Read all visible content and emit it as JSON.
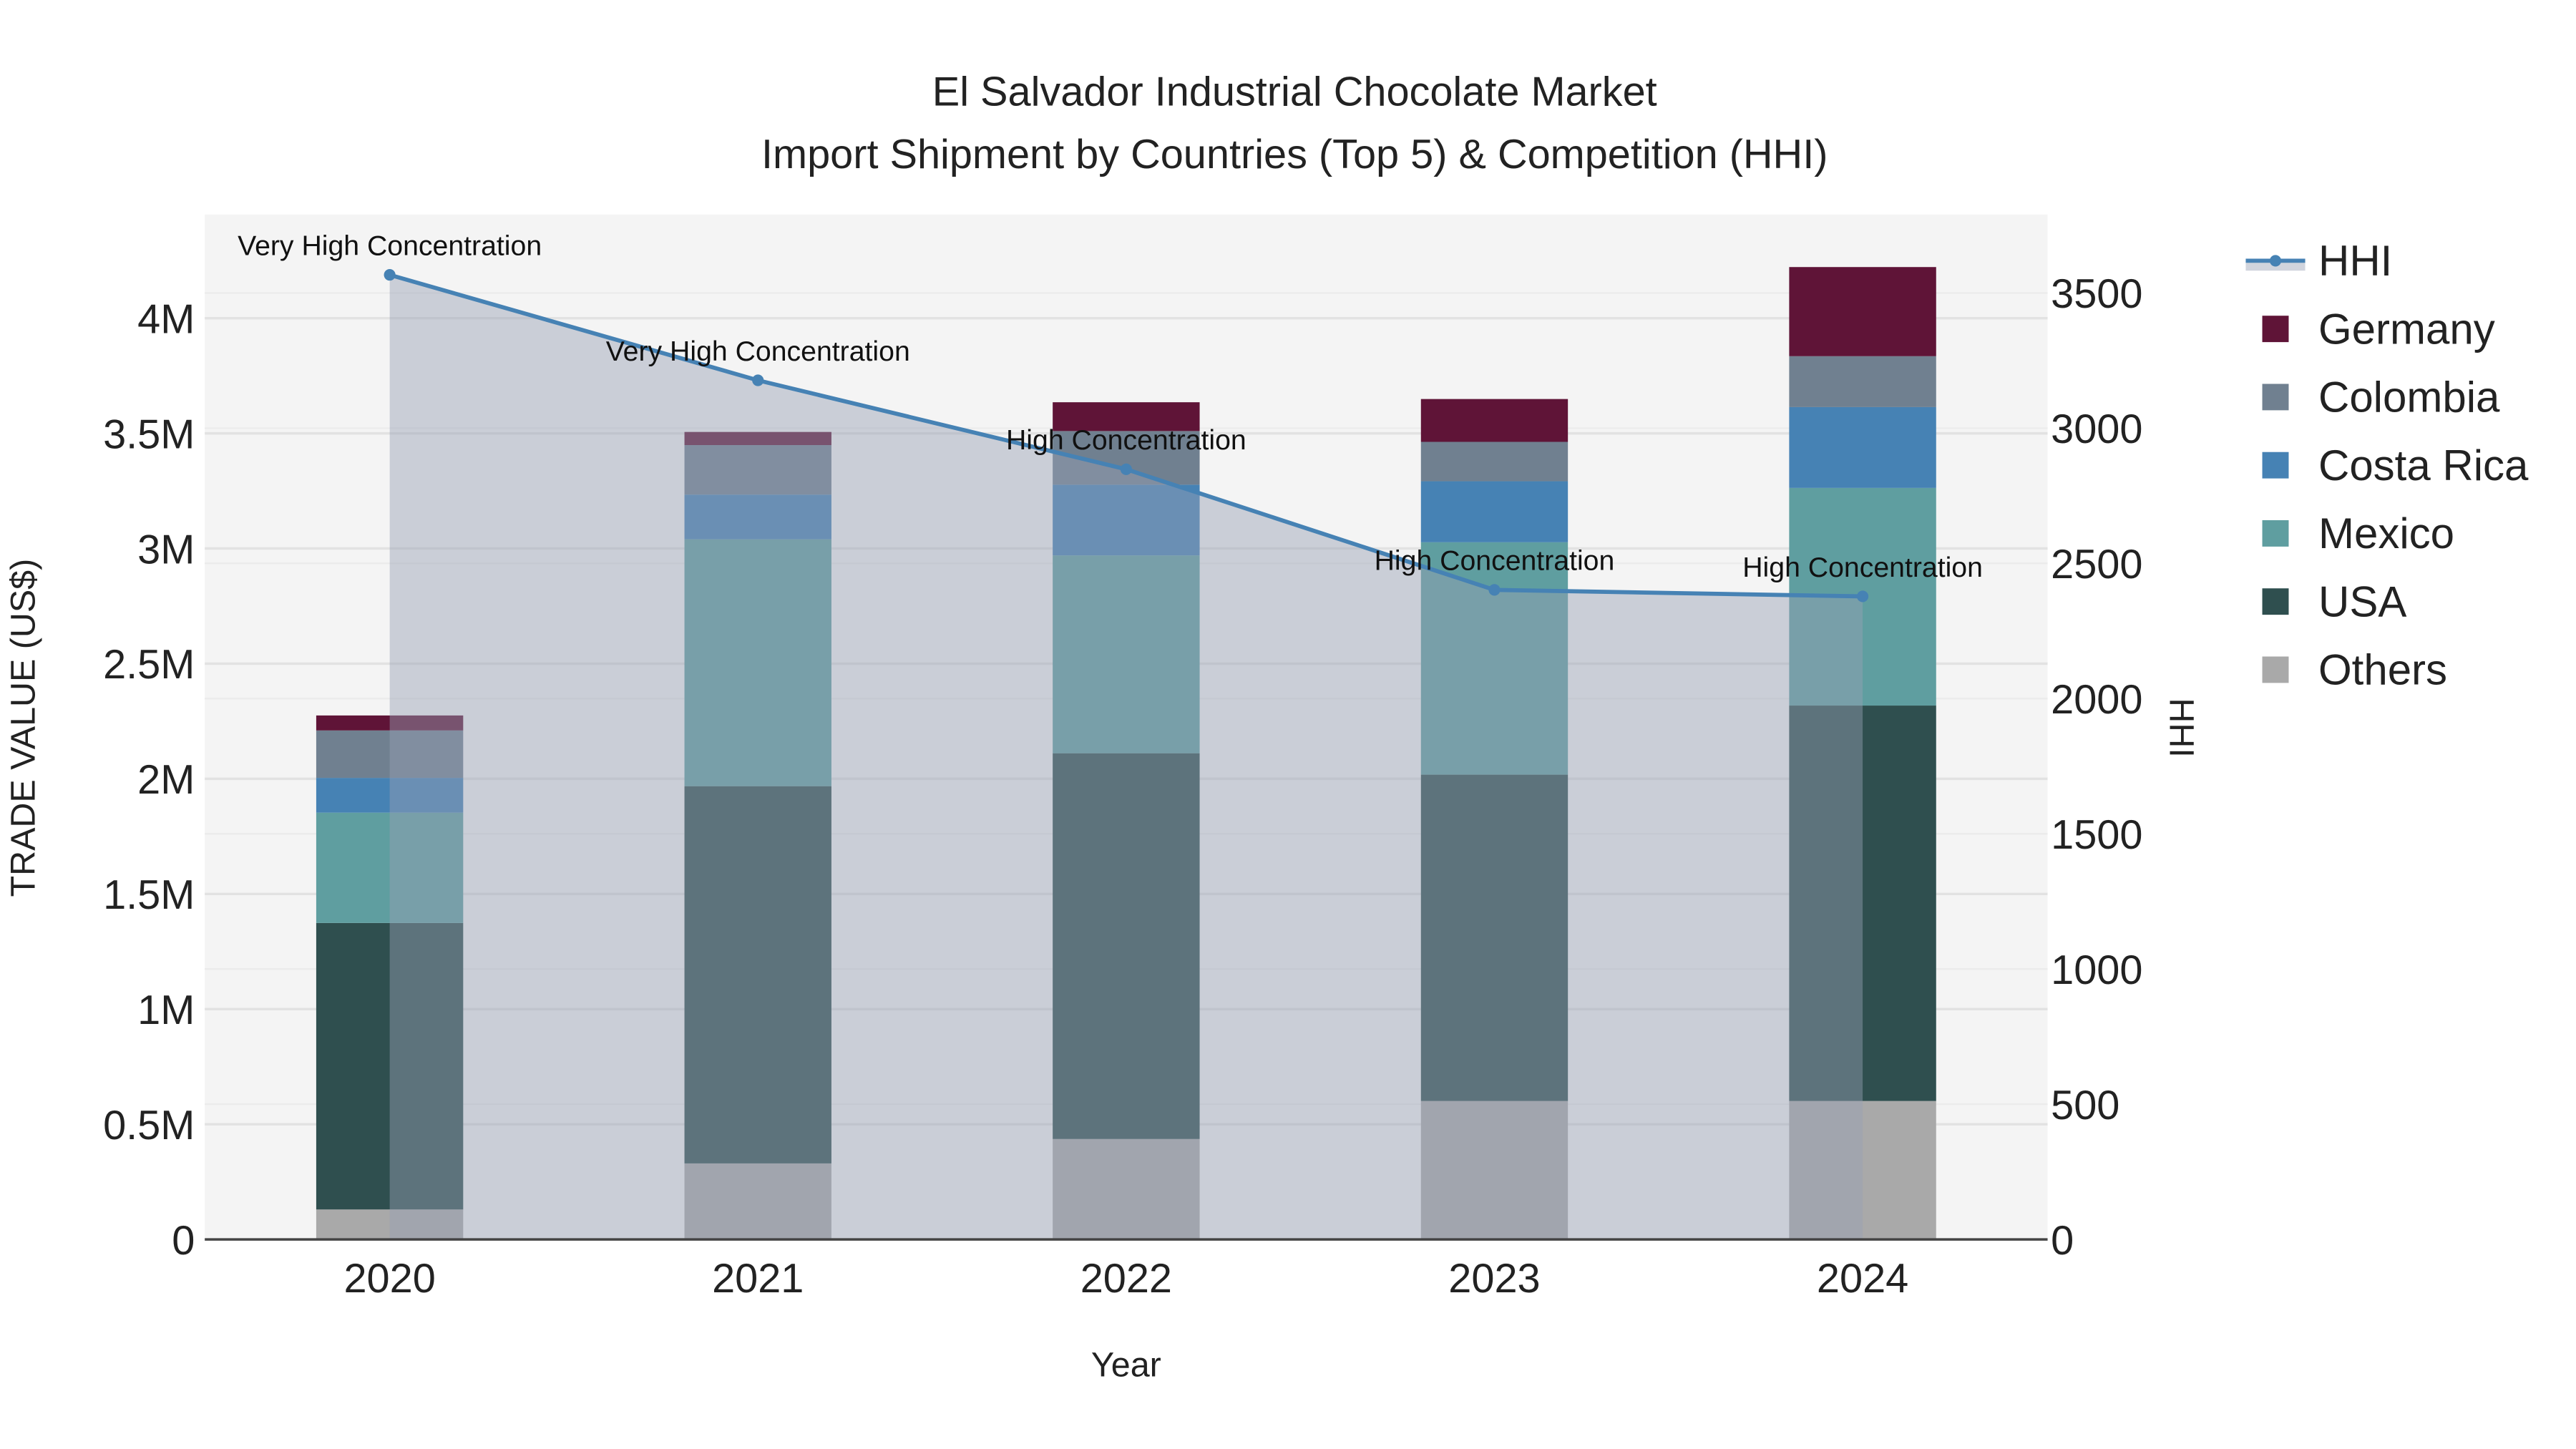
{
  "chart_data": {
    "type": "bar",
    "title": "El Salvador Industrial Chocolate Market",
    "subtitle": "Import Shipment by Countries (Top 5) & Competition (HHI)",
    "xlabel": "Year",
    "ylabel": "TRADE VALUE (US$)",
    "y2label": "HHI",
    "categories": [
      "2020",
      "2021",
      "2022",
      "2023",
      "2024"
    ],
    "ylim": [
      0,
      4450000
    ],
    "y2lim": [
      0,
      3790
    ],
    "yticks": [
      {
        "v": 0,
        "label": "0"
      },
      {
        "v": 500000,
        "label": "0.5M"
      },
      {
        "v": 1000000,
        "label": "1M"
      },
      {
        "v": 1500000,
        "label": "1.5M"
      },
      {
        "v": 2000000,
        "label": "2M"
      },
      {
        "v": 2500000,
        "label": "2.5M"
      },
      {
        "v": 3000000,
        "label": "3M"
      },
      {
        "v": 3500000,
        "label": "3.5M"
      },
      {
        "v": 4000000,
        "label": "4M"
      }
    ],
    "y2ticks": [
      {
        "v": 0,
        "label": "0"
      },
      {
        "v": 500,
        "label": "500"
      },
      {
        "v": 1000,
        "label": "1000"
      },
      {
        "v": 1500,
        "label": "1500"
      },
      {
        "v": 2000,
        "label": "2000"
      },
      {
        "v": 2500,
        "label": "2500"
      },
      {
        "v": 3000,
        "label": "3000"
      },
      {
        "v": 3500,
        "label": "3500"
      }
    ],
    "stacked": true,
    "series": [
      {
        "name": "Others",
        "color": "#a9a9a9",
        "values": [
          130000,
          330000,
          436000,
          601000,
          601000
        ]
      },
      {
        "name": "USA",
        "color": "#2f4f4f",
        "values": [
          1244000,
          1638000,
          1675000,
          1417000,
          1717000
        ]
      },
      {
        "name": "Mexico",
        "color": "#5f9ea0",
        "values": [
          479000,
          1072000,
          859000,
          1009000,
          945000
        ]
      },
      {
        "name": "Costa Rica",
        "color": "#4682b4",
        "values": [
          151000,
          194000,
          307000,
          265000,
          351000
        ]
      },
      {
        "name": "Colombia",
        "color": "#708090",
        "values": [
          206000,
          215000,
          233000,
          171000,
          221000
        ]
      },
      {
        "name": "Germany",
        "color": "#5f1437",
        "values": [
          65000,
          57000,
          125000,
          186000,
          387000
        ]
      }
    ],
    "hhi": {
      "name": "HHI",
      "color": "#4682b4",
      "values": [
        3567,
        3177,
        2848,
        2402,
        2378
      ],
      "annotations": [
        "Very High Concentration",
        "Very High Concentration",
        "High Concentration",
        "High Concentration",
        "High Concentration"
      ]
    },
    "legend_order": [
      "HHI",
      "Germany",
      "Colombia",
      "Costa Rica",
      "Mexico",
      "USA",
      "Others"
    ],
    "legend_position": "right",
    "grid": true
  }
}
